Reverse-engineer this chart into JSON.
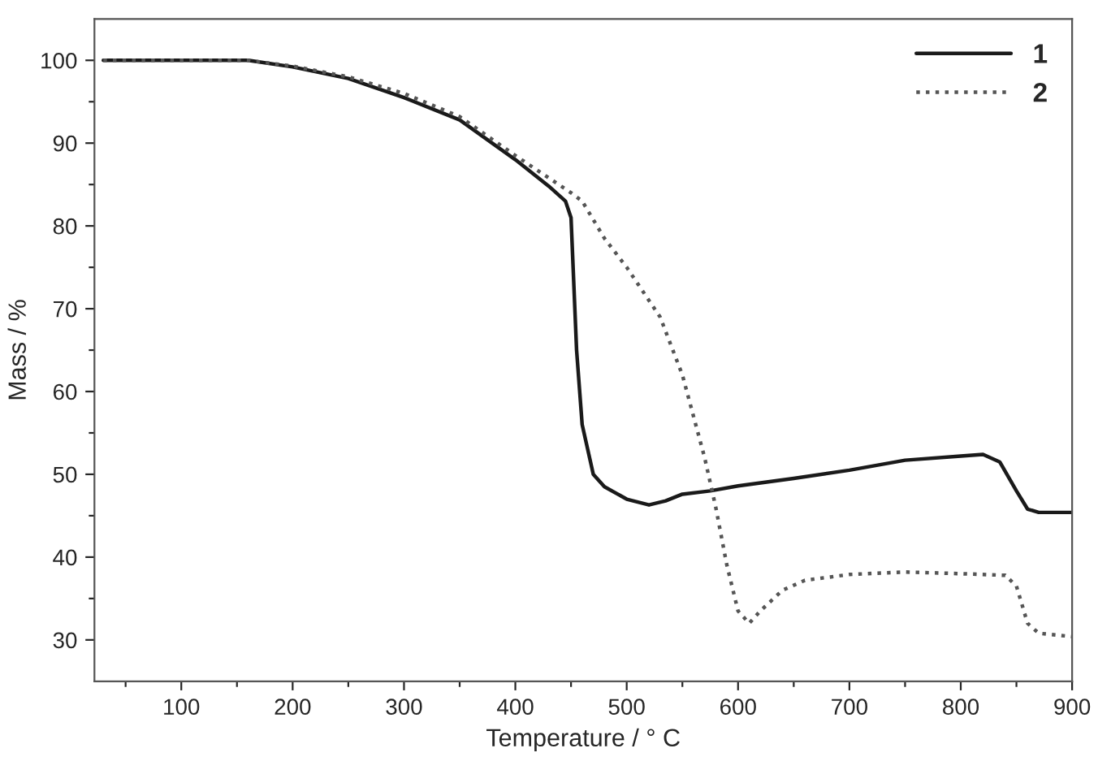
{
  "chart_data": {
    "type": "line",
    "xlabel": "Temperature / ° C",
    "ylabel": "Mass / %",
    "xlim": [
      22,
      900
    ],
    "ylim": [
      25,
      105
    ],
    "xticks": [
      {
        "value": 50,
        "label": null
      },
      100,
      {
        "value": 150,
        "label": null
      },
      200,
      {
        "value": 250,
        "label": null
      },
      300,
      {
        "value": 350,
        "label": null
      },
      400,
      {
        "value": 450,
        "label": null
      },
      500,
      {
        "value": 550,
        "label": null
      },
      600,
      {
        "value": 650,
        "label": null
      },
      700,
      {
        "value": 750,
        "label": null
      },
      800,
      {
        "value": 850,
        "label": null
      },
      900
    ],
    "yticks": [
      30,
      {
        "value": 35,
        "label": null
      },
      40,
      {
        "value": 45,
        "label": null
      },
      50,
      {
        "value": 55,
        "label": null
      },
      60,
      {
        "value": 65,
        "label": null
      },
      70,
      {
        "value": 75,
        "label": null
      },
      80,
      {
        "value": 85,
        "label": null
      },
      90,
      {
        "value": 95,
        "label": null
      },
      100
    ],
    "grid": false,
    "legend": "top right",
    "marker": "none",
    "series": [
      {
        "name": "1",
        "color": "#1a1a1a",
        "line_style": "solid",
        "x": [
          30,
          160,
          200,
          250,
          300,
          350,
          400,
          430,
          445,
          450,
          455,
          460,
          470,
          480,
          500,
          520,
          535,
          550,
          575,
          600,
          650,
          700,
          750,
          800,
          820,
          835,
          850,
          860,
          870,
          900
        ],
        "values": [
          100,
          100,
          99.2,
          97.8,
          95.5,
          92.8,
          88,
          84.8,
          83,
          81,
          65,
          56,
          50,
          48.5,
          47,
          46.3,
          46.8,
          47.6,
          48,
          48.6,
          49.5,
          50.5,
          51.7,
          52.2,
          52.4,
          51.5,
          48,
          45.8,
          45.4,
          45.4
        ]
      },
      {
        "name": "2",
        "color": "#555555",
        "line_style": "dotted",
        "x": [
          30,
          160,
          200,
          250,
          300,
          350,
          400,
          450,
          460,
          480,
          500,
          530,
          550,
          570,
          580,
          590,
          600,
          610,
          620,
          640,
          660,
          700,
          750,
          800,
          840,
          850,
          860,
          870,
          900
        ],
        "values": [
          100,
          100,
          99.3,
          98,
          96,
          93.2,
          88.5,
          84,
          83,
          78.5,
          75,
          69,
          62,
          52,
          46,
          39,
          33.5,
          32,
          33.5,
          36,
          37.2,
          37.9,
          38.2,
          38,
          37.8,
          36.5,
          32,
          30.8,
          30.4
        ]
      }
    ]
  }
}
